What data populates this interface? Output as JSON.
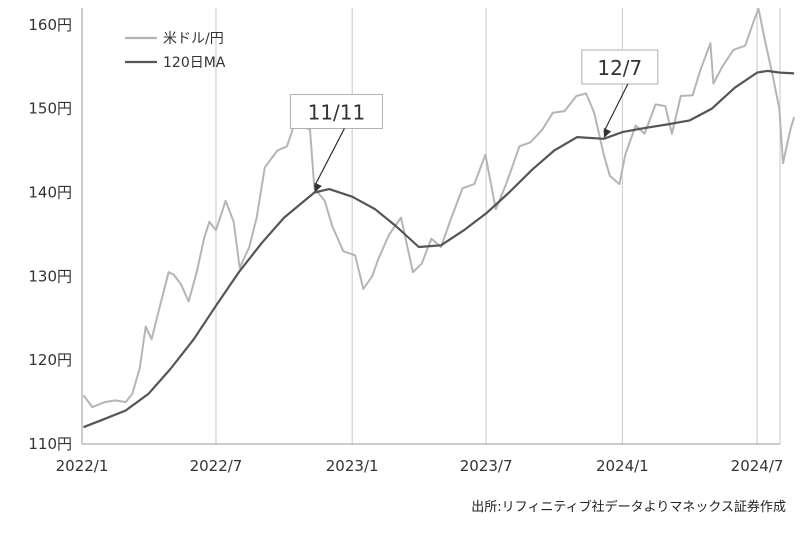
{
  "chart_data": {
    "type": "line",
    "xlabel": "",
    "ylabel": "",
    "y_unit": "円",
    "ylim": [
      110,
      162
    ],
    "y_ticks": [
      110,
      120,
      130,
      140,
      150,
      160
    ],
    "y_tick_labels": [
      "110円",
      "120円",
      "130円",
      "140円",
      "150円",
      "160円"
    ],
    "x_range": [
      "2022-01",
      "2024-08"
    ],
    "x_ticks": [
      "2022/1",
      "2022/7",
      "2023/1",
      "2023/7",
      "2024/1",
      "2024/7"
    ],
    "grid": {
      "vertical": true,
      "horizontal": false
    },
    "legend_position": "top-left",
    "colors": {
      "spot": "#b5b5b5",
      "ma": "#555555",
      "grid": "#c8c8c8",
      "axis": "#999999"
    },
    "series": [
      {
        "name": "米ドル/円",
        "color": "#b5b5b5",
        "points": [
          [
            "2022-01-03",
            115.8
          ],
          [
            "2022-01-15",
            114.4
          ],
          [
            "2022-02-01",
            115.0
          ],
          [
            "2022-02-15",
            115.2
          ],
          [
            "2022-03-01",
            115.0
          ],
          [
            "2022-03-10",
            116.0
          ],
          [
            "2022-03-20",
            119.0
          ],
          [
            "2022-03-28",
            124.0
          ],
          [
            "2022-04-05",
            122.5
          ],
          [
            "2022-04-15",
            126.0
          ],
          [
            "2022-04-28",
            130.5
          ],
          [
            "2022-05-05",
            130.2
          ],
          [
            "2022-05-15",
            129.0
          ],
          [
            "2022-05-25",
            127.0
          ],
          [
            "2022-06-05",
            130.5
          ],
          [
            "2022-06-15",
            134.5
          ],
          [
            "2022-06-22",
            136.5
          ],
          [
            "2022-07-01",
            135.5
          ],
          [
            "2022-07-14",
            139.0
          ],
          [
            "2022-07-25",
            136.5
          ],
          [
            "2022-08-02",
            131.0
          ],
          [
            "2022-08-15",
            133.5
          ],
          [
            "2022-08-25",
            137.0
          ],
          [
            "2022-09-05",
            143.0
          ],
          [
            "2022-09-22",
            145.0
          ],
          [
            "2022-10-05",
            145.5
          ],
          [
            "2022-10-20",
            149.5
          ],
          [
            "2022-10-25",
            148.0
          ],
          [
            "2022-11-05",
            147.5
          ],
          [
            "2022-11-11",
            140.5
          ],
          [
            "2022-11-25",
            139.0
          ],
          [
            "2022-12-05",
            136.0
          ],
          [
            "2022-12-20",
            133.0
          ],
          [
            "2023-01-05",
            132.5
          ],
          [
            "2023-01-16",
            128.5
          ],
          [
            "2023-01-28",
            130.0
          ],
          [
            "2023-02-05",
            132.0
          ],
          [
            "2023-02-20",
            135.0
          ],
          [
            "2023-03-08",
            137.0
          ],
          [
            "2023-03-24",
            130.5
          ],
          [
            "2023-04-05",
            131.5
          ],
          [
            "2023-04-18",
            134.5
          ],
          [
            "2023-05-01",
            133.5
          ],
          [
            "2023-05-15",
            137.0
          ],
          [
            "2023-05-30",
            140.5
          ],
          [
            "2023-06-15",
            141.0
          ],
          [
            "2023-06-30",
            144.5
          ],
          [
            "2023-07-14",
            138.0
          ],
          [
            "2023-07-28",
            141.0
          ],
          [
            "2023-08-15",
            145.5
          ],
          [
            "2023-08-30",
            146.0
          ],
          [
            "2023-09-15",
            147.5
          ],
          [
            "2023-09-29",
            149.5
          ],
          [
            "2023-10-15",
            149.7
          ],
          [
            "2023-10-31",
            151.5
          ],
          [
            "2023-11-13",
            151.8
          ],
          [
            "2023-11-24",
            149.5
          ],
          [
            "2023-12-07",
            144.5
          ],
          [
            "2023-12-15",
            142.0
          ],
          [
            "2023-12-28",
            141.0
          ],
          [
            "2024-01-05",
            144.5
          ],
          [
            "2024-01-19",
            148.0
          ],
          [
            "2024-01-31",
            147.0
          ],
          [
            "2024-02-15",
            150.5
          ],
          [
            "2024-02-28",
            150.3
          ],
          [
            "2024-03-08",
            147.0
          ],
          [
            "2024-03-20",
            151.5
          ],
          [
            "2024-04-05",
            151.6
          ],
          [
            "2024-04-15",
            154.5
          ],
          [
            "2024-04-29",
            157.8
          ],
          [
            "2024-05-03",
            153.0
          ],
          [
            "2024-05-15",
            155.0
          ],
          [
            "2024-05-30",
            157.0
          ],
          [
            "2024-06-15",
            157.5
          ],
          [
            "2024-06-28",
            160.8
          ],
          [
            "2024-07-03",
            161.9
          ],
          [
            "2024-07-12",
            158.0
          ],
          [
            "2024-07-22",
            154.0
          ],
          [
            "2024-07-31",
            150.0
          ],
          [
            "2024-08-05",
            143.5
          ],
          [
            "2024-08-15",
            147.5
          ],
          [
            "2024-08-20",
            149.0
          ]
        ]
      },
      {
        "name": "120日MA",
        "color": "#555555",
        "points": [
          [
            "2022-01-03",
            112.0
          ],
          [
            "2022-02-01",
            113.0
          ],
          [
            "2022-03-01",
            114.0
          ],
          [
            "2022-04-01",
            116.0
          ],
          [
            "2022-05-01",
            119.0
          ],
          [
            "2022-06-01",
            122.5
          ],
          [
            "2022-07-01",
            126.5
          ],
          [
            "2022-08-01",
            130.5
          ],
          [
            "2022-09-01",
            134.0
          ],
          [
            "2022-10-01",
            137.0
          ],
          [
            "2022-11-11",
            140.0
          ],
          [
            "2022-12-01",
            140.4
          ],
          [
            "2023-01-01",
            139.5
          ],
          [
            "2023-02-01",
            138.0
          ],
          [
            "2023-03-01",
            136.0
          ],
          [
            "2023-04-01",
            133.5
          ],
          [
            "2023-05-01",
            133.7
          ],
          [
            "2023-06-01",
            135.5
          ],
          [
            "2023-07-01",
            137.5
          ],
          [
            "2023-08-01",
            140.0
          ],
          [
            "2023-09-01",
            142.7
          ],
          [
            "2023-10-01",
            145.0
          ],
          [
            "2023-11-01",
            146.6
          ],
          [
            "2023-12-07",
            146.4
          ],
          [
            "2024-01-01",
            147.2
          ],
          [
            "2024-02-01",
            147.7
          ],
          [
            "2024-03-01",
            148.1
          ],
          [
            "2024-04-01",
            148.6
          ],
          [
            "2024-05-01",
            150.0
          ],
          [
            "2024-06-01",
            152.5
          ],
          [
            "2024-07-01",
            154.3
          ],
          [
            "2024-07-15",
            154.5
          ],
          [
            "2024-08-01",
            154.3
          ],
          [
            "2024-08-20",
            154.2
          ]
        ]
      }
    ],
    "annotations": [
      {
        "text": "11/11",
        "date": "2022-11-11",
        "value": 140.0
      },
      {
        "text": "12/7",
        "date": "2023-12-07",
        "value": 146.5
      }
    ],
    "source": "出所:リフィニティブ社データよりマネックス証券作成"
  }
}
